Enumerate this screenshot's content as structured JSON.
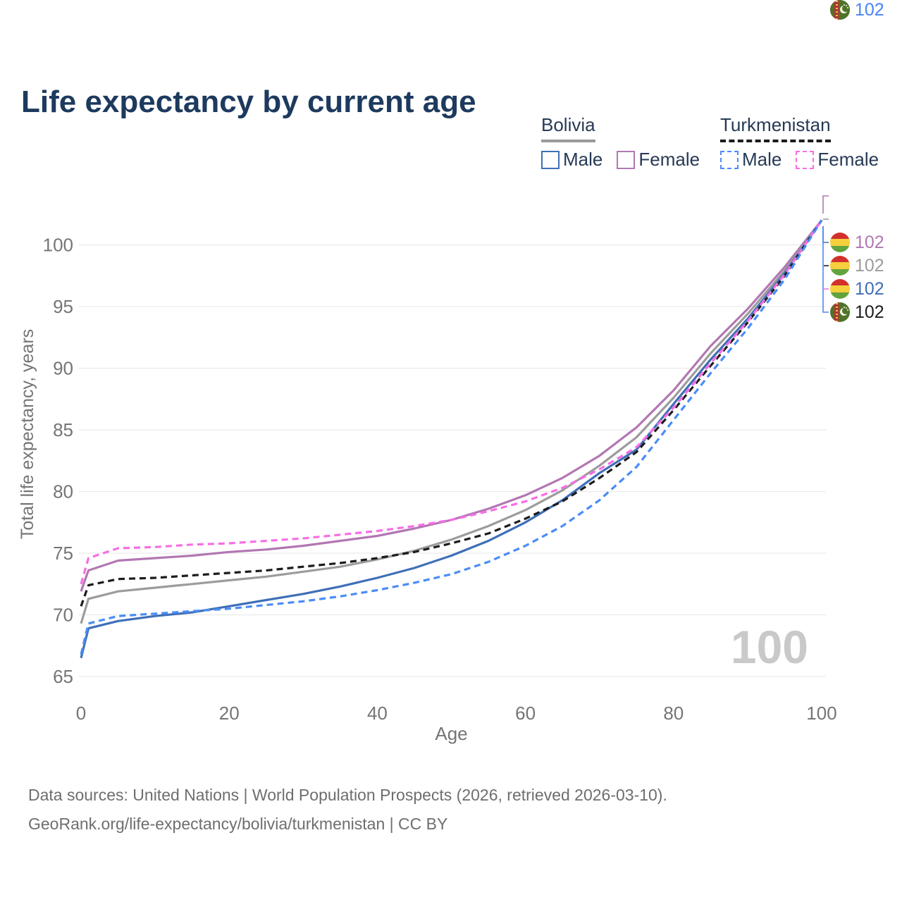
{
  "title": "Life expectancy by current age",
  "legend": {
    "groups": [
      {
        "label": "Bolivia",
        "underline_style": "solid",
        "underline_color": "#9a9a9a",
        "items": [
          {
            "label": "Male",
            "color": "#3f6fb7",
            "dashed": false
          },
          {
            "label": "Female",
            "color": "#b277b2",
            "dashed": false
          }
        ]
      },
      {
        "label": "Turkmenistan",
        "underline_style": "dashed",
        "underline_color": "#1c1c1c",
        "items": [
          {
            "label": "Male",
            "color": "#4a8cf7",
            "dashed": true
          },
          {
            "label": "Female",
            "color": "#f76ee6",
            "dashed": true
          }
        ]
      }
    ]
  },
  "chart_data": {
    "type": "line",
    "title": "Life expectancy by current age",
    "xlabel": "Age",
    "ylabel": "Total life expectancy, years",
    "xlim": [
      0,
      100
    ],
    "ylim": [
      65,
      102.5
    ],
    "xticks": [
      0,
      20,
      40,
      60,
      80,
      100
    ],
    "yticks": [
      65,
      70,
      75,
      80,
      85,
      90,
      95,
      100
    ],
    "grid": "horizontal-only",
    "legend_position": "top-right",
    "watermark": "100",
    "x": [
      0,
      1,
      5,
      10,
      15,
      20,
      25,
      30,
      35,
      40,
      45,
      50,
      55,
      60,
      65,
      70,
      75,
      80,
      85,
      90,
      95,
      100
    ],
    "series": [
      {
        "name": "Bolivia Female",
        "country": "Bolivia",
        "sex": "Female",
        "color": "#b277b2",
        "dashed": false,
        "values": [
          71.9,
          73.6,
          74.4,
          74.6,
          74.8,
          75.1,
          75.3,
          75.6,
          76.0,
          76.4,
          77.0,
          77.7,
          78.6,
          79.7,
          81.1,
          82.9,
          85.2,
          88.2,
          91.8,
          94.8,
          98.2,
          102
        ]
      },
      {
        "name": "Bolivia Both sexes",
        "country": "Bolivia",
        "sex": "Both",
        "color": "#9c9c9c",
        "dashed": false,
        "values": [
          69.3,
          71.3,
          71.9,
          72.2,
          72.5,
          72.8,
          73.1,
          73.5,
          73.9,
          74.5,
          75.2,
          76.1,
          77.2,
          78.5,
          80.1,
          82.1,
          84.4,
          87.6,
          91.2,
          94.4,
          97.9,
          102
        ]
      },
      {
        "name": "Bolivia Male",
        "country": "Bolivia",
        "sex": "Male",
        "color": "#3f6fb7",
        "dashed": false,
        "values": [
          66.5,
          68.9,
          69.5,
          69.9,
          70.2,
          70.7,
          71.2,
          71.7,
          72.3,
          73.0,
          73.8,
          74.8,
          76.0,
          77.5,
          79.3,
          81.5,
          83.4,
          87.1,
          90.7,
          94.0,
          97.7,
          102
        ]
      },
      {
        "name": "Turkmenistan Both sexes",
        "country": "Turkmenistan",
        "sex": "Both",
        "color": "#1c1c1c",
        "dashed": true,
        "values": [
          70.7,
          72.4,
          72.9,
          73.0,
          73.2,
          73.4,
          73.6,
          73.9,
          74.2,
          74.6,
          75.1,
          75.8,
          76.6,
          77.8,
          79.2,
          81.1,
          83.2,
          86.6,
          90.2,
          93.7,
          97.5,
          102
        ]
      },
      {
        "name": "Turkmenistan Female",
        "country": "Turkmenistan",
        "sex": "Female",
        "color": "#f76ee6",
        "dashed": true,
        "values": [
          72.5,
          74.6,
          75.4,
          75.5,
          75.7,
          75.8,
          76.0,
          76.2,
          76.5,
          76.8,
          77.2,
          77.7,
          78.4,
          79.2,
          80.3,
          81.8,
          83.6,
          86.8,
          90.4,
          93.8,
          97.6,
          102
        ]
      },
      {
        "name": "Turkmenistan Male",
        "country": "Turkmenistan",
        "sex": "Male",
        "color": "#4a8cf7",
        "dashed": true,
        "values": [
          66.8,
          69.3,
          69.9,
          70.1,
          70.3,
          70.5,
          70.8,
          71.1,
          71.5,
          72.0,
          72.6,
          73.3,
          74.3,
          75.6,
          77.2,
          79.3,
          82.0,
          85.8,
          89.6,
          93.2,
          97.2,
          102
        ]
      }
    ]
  },
  "end_labels": [
    {
      "value": "102",
      "color": "#b277b2",
      "flag": "bolivia",
      "series": "Bolivia Female"
    },
    {
      "value": "102",
      "color": "#9c9c9c",
      "flag": "bolivia",
      "series": "Bolivia Both sexes"
    },
    {
      "value": "102",
      "color": "#3f6fb7",
      "flag": "bolivia",
      "series": "Bolivia Male"
    },
    {
      "value": "102",
      "color": "#1c1c1c",
      "flag": "turkmenistan",
      "series": "Turkmenistan Both sexes"
    },
    {
      "value": "102",
      "color": "#f76ee6",
      "flag": "turkmenistan",
      "series": "Turkmenistan Female"
    },
    {
      "value": "102",
      "color": "#4a8cf7",
      "flag": "turkmenistan",
      "series": "Turkmenistan Male"
    }
  ],
  "footer": {
    "line1": "Data sources: United Nations | World Population Prospects (2026, retrieved 2026-03-10).",
    "line2": "GeoRank.org/life-expectancy/bolivia/turkmenistan | CC BY"
  },
  "colors": {
    "title": "#1d3a5e",
    "axis_text": "#757575",
    "gridline": "#eaeaea",
    "watermark": "#c9c9c9",
    "footer_text": "#6e6e6e",
    "legend_text": "#263a55"
  }
}
